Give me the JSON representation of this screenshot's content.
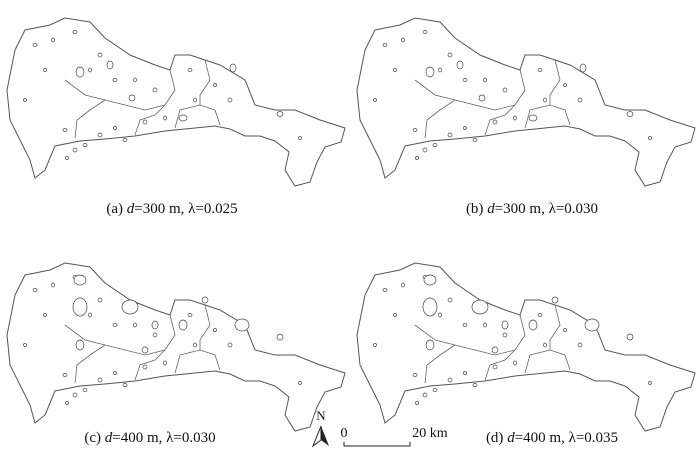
{
  "panels": [
    {
      "label": "(a)",
      "var": "d",
      "param": "=300 m, λ=0.025"
    },
    {
      "label": "(b)",
      "var": "d",
      "param": "=300 m, λ=0.030"
    },
    {
      "label": "(c)",
      "var": "d",
      "param": "=400 m, λ=0.030"
    },
    {
      "label": "(d)",
      "var": "d",
      "param": "=400 m, λ=0.035"
    }
  ],
  "north": "N",
  "scale_bar": {
    "start": "0",
    "end": "20 km"
  }
}
